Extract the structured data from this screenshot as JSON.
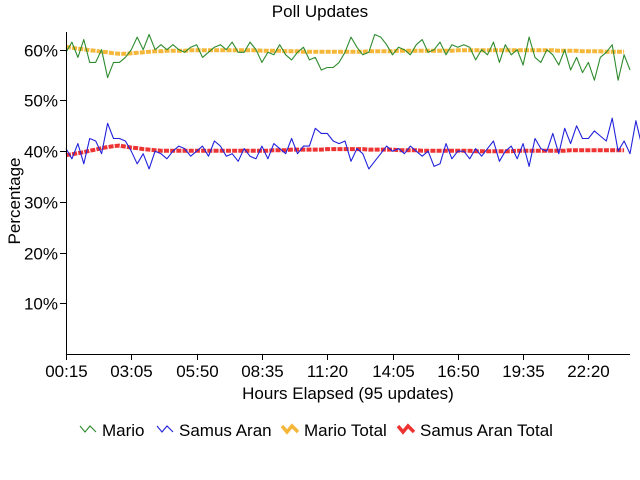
{
  "chart_data": {
    "type": "line",
    "title": "Poll Updates",
    "xlabel": "Hours Elapsed (95 updates)",
    "ylabel": "Percentage",
    "x_tick_labels": [
      "00:15",
      "03:05",
      "05:50",
      "08:35",
      "11:20",
      "14:05",
      "16:50",
      "19:35",
      "22:20"
    ],
    "y_ticks": [
      10,
      20,
      30,
      40,
      50,
      60
    ],
    "y_tick_labels": [
      "10%",
      "20%",
      "30%",
      "40%",
      "50%",
      "60%"
    ],
    "ylim": [
      0,
      63.5
    ],
    "grid": false,
    "legend_position": "bottom",
    "series": [
      {
        "name": "Mario",
        "color": "#2e8b2e",
        "style": "thin",
        "values": [
          59.5,
          61.5,
          58.5,
          62,
          57.5,
          57.5,
          60,
          54.5,
          57.5,
          57.5,
          58.5,
          60,
          62.5,
          60,
          63,
          60,
          61,
          60,
          61,
          60,
          59.5,
          60.5,
          61,
          58.5,
          59.5,
          60.5,
          61,
          60,
          61.5,
          59.5,
          59.5,
          61.5,
          60,
          57.5,
          59.5,
          59,
          61,
          59,
          58,
          59.5,
          60.5,
          58,
          58.5,
          56,
          56.5,
          56.5,
          57.5,
          59.5,
          62.5,
          60.5,
          59,
          59.5,
          63,
          62.5,
          61,
          59,
          60.5,
          60,
          59,
          61,
          62,
          59.5,
          60,
          61.5,
          59,
          61,
          60.5,
          61,
          60.5,
          58,
          60,
          59,
          61.5,
          57.5,
          61,
          59,
          60,
          57,
          62.5,
          58.5,
          57.5,
          60,
          59,
          57,
          60,
          56,
          58.5,
          55.5,
          57.5,
          54,
          58.5,
          59.5,
          61,
          54,
          59,
          56
        ]
      },
      {
        "name": "Samus Aran",
        "color": "#2222dd",
        "style": "thin",
        "values": [
          40.5,
          38.5,
          41.5,
          37.5,
          42.5,
          42,
          39.5,
          45.5,
          42.5,
          42.5,
          42,
          40,
          37.5,
          39.5,
          36.5,
          40,
          39.5,
          38.5,
          40,
          41,
          40.5,
          39,
          40,
          41,
          39,
          42,
          41,
          39,
          39.5,
          38,
          40.5,
          39,
          38.5,
          41,
          38.5,
          41.5,
          40.5,
          39.5,
          42.5,
          39.5,
          41,
          41,
          44.5,
          43.5,
          43.5,
          42,
          41.5,
          42,
          38,
          40.5,
          39.5,
          36.5,
          38,
          39.5,
          41,
          40,
          40.5,
          39.5,
          41,
          40,
          39,
          40,
          37,
          37.5,
          41.5,
          38.5,
          40,
          40,
          38.5,
          40.5,
          39,
          40.5,
          42,
          38,
          40,
          41,
          38.5,
          41.5,
          37,
          42.5,
          40.5,
          40,
          43.5,
          39.5,
          44.5,
          41.5,
          45,
          42.5,
          42.5,
          44,
          43,
          42,
          46.5,
          40,
          42,
          39.5,
          46,
          41,
          44.5
        ]
      },
      {
        "name": "Mario Total",
        "color": "#f5b73a",
        "style": "thick",
        "values": [
          60.6,
          60.4,
          60.2,
          60.1,
          59.9,
          59.8,
          59.6,
          59.5,
          59.3,
          59.2,
          59.2,
          59.3,
          59.4,
          59.5,
          59.6,
          59.7,
          59.7,
          59.8,
          59.8,
          59.8,
          59.8,
          59.9,
          59.9,
          59.9,
          59.9,
          59.9,
          59.9,
          59.9,
          59.9,
          59.9,
          59.9,
          59.9,
          59.9,
          59.8,
          59.8,
          59.8,
          59.8,
          59.7,
          59.7,
          59.7,
          59.6,
          59.6,
          59.6,
          59.6,
          59.6,
          59.6,
          59.6,
          59.6,
          59.6,
          59.6,
          59.6,
          59.7,
          59.7,
          59.7,
          59.7,
          59.7,
          59.8,
          59.8,
          59.8,
          59.8,
          59.8,
          59.8,
          59.8,
          59.8,
          59.8,
          59.8,
          59.9,
          59.9,
          59.9,
          59.9,
          59.9,
          59.9,
          59.9,
          59.9,
          59.9,
          59.9,
          59.9,
          59.9,
          59.9,
          59.9,
          59.9,
          59.9,
          59.9,
          59.8,
          59.8,
          59.8,
          59.8,
          59.7,
          59.7,
          59.7,
          59.7,
          59.6,
          59.6,
          59.6,
          59.6
        ]
      },
      {
        "name": "Samus Aran Total",
        "color": "#ee3333",
        "style": "thick",
        "values": [
          39.2,
          39.4,
          39.6,
          39.8,
          40.1,
          40.3,
          40.6,
          40.8,
          41,
          41.1,
          40.9,
          40.7,
          40.6,
          40.4,
          40.3,
          40.2,
          40.1,
          40.1,
          40.1,
          40.1,
          40.1,
          40.1,
          40.1,
          40.1,
          40.1,
          40.1,
          40.1,
          40.1,
          40.1,
          40.1,
          40.1,
          40.1,
          40.1,
          40.1,
          40.1,
          40.2,
          40.2,
          40.2,
          40.3,
          40.3,
          40.3,
          40.3,
          40.3,
          40.3,
          40.4,
          40.4,
          40.4,
          40.4,
          40.4,
          40.4,
          40.4,
          40.3,
          40.3,
          40.3,
          40.3,
          40.3,
          40.2,
          40.2,
          40.2,
          40.2,
          40.1,
          40.1,
          40.1,
          40.1,
          40.1,
          40.1,
          40.1,
          40.1,
          40.1,
          40,
          40,
          40,
          40,
          40,
          40,
          40,
          40.1,
          40.1,
          40.1,
          40.1,
          40.1,
          40.1,
          40.1,
          40.1,
          40.1,
          40.2,
          40.2,
          40.2,
          40.2,
          40.2,
          40.2,
          40.2,
          40.2,
          40.2,
          40.2
        ]
      }
    ]
  }
}
